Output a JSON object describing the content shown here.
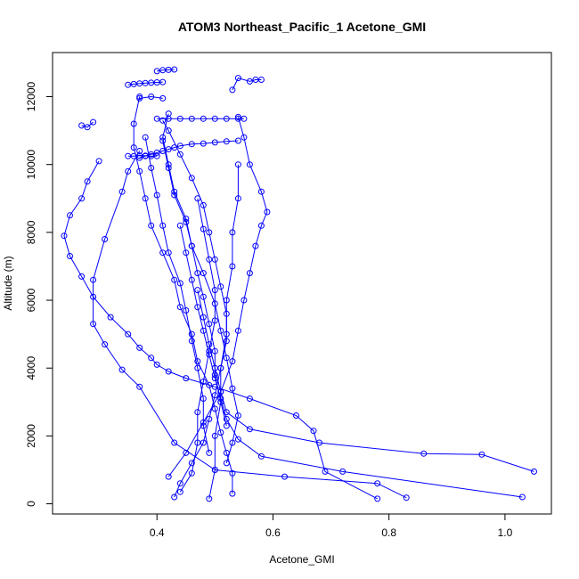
{
  "chart_data": {
    "type": "scatter",
    "title": "ATOM3 Northeast_Pacific_1 Acetone_GMI",
    "xlabel": "Acetone_GMI",
    "ylabel": "Altitude (m)",
    "xlim": [
      0.22,
      1.08
    ],
    "ylim": [
      -300,
      13300
    ],
    "x_ticks": [
      "0.4",
      "0.6",
      "0.8",
      "1.0"
    ],
    "y_ticks": [
      "0",
      "2000",
      "4000",
      "6000",
      "8000",
      "10000",
      "12000"
    ],
    "grid": false,
    "marker": "open-circle",
    "color": "#0000ff",
    "series": [
      {
        "x": [
          0.43,
          0.44,
          0.46,
          0.48,
          0.49,
          0.5,
          0.51,
          0.52,
          0.52,
          0.51,
          0.5,
          0.49,
          0.48,
          0.46,
          0.44,
          0.42,
          0.41
        ],
        "y": [
          200,
          600,
          1200,
          1800,
          2500,
          3200,
          4000,
          4800,
          5600,
          6400,
          7200,
          8000,
          8800,
          9600,
          10300,
          11000,
          11300
        ]
      },
      {
        "x": [
          0.53,
          0.53,
          0.52,
          0.51,
          0.5,
          0.49,
          0.47,
          0.46,
          0.44,
          0.43,
          0.41,
          0.39,
          0.38,
          0.37,
          0.36,
          0.36,
          0.37
        ],
        "y": [
          300,
          900,
          1500,
          2100,
          2800,
          3500,
          4200,
          5000,
          5800,
          6600,
          7400,
          8200,
          9000,
          9800,
          10500,
          11200,
          12000
        ]
      },
      {
        "x": [
          0.52,
          0.53,
          0.54,
          0.53,
          0.52,
          0.51,
          0.5,
          0.48,
          0.46,
          0.45,
          0.43,
          0.42,
          0.41,
          0.42
        ],
        "y": [
          1200,
          1800,
          2600,
          3400,
          4300,
          5100,
          5900,
          6800,
          7600,
          8400,
          9200,
          10000,
          10800,
          11500
        ]
      },
      {
        "x": [
          0.49,
          0.48,
          0.48,
          0.47,
          0.46,
          0.45,
          0.44,
          0.42,
          0.41,
          0.4,
          0.39,
          0.38
        ],
        "y": [
          1500,
          2300,
          3100,
          4000,
          4800,
          5700,
          6500,
          7400,
          8200,
          9100,
          9900,
          10800
        ]
      },
      {
        "x": [
          1.03,
          0.72,
          0.58,
          0.54,
          0.52,
          0.51,
          0.5,
          0.49,
          0.48,
          0.47,
          0.46,
          0.45,
          0.44
        ],
        "y": [
          200,
          950,
          1400,
          1900,
          2500,
          3100,
          3700,
          4400,
          5100,
          5800,
          6600,
          7400,
          8200
        ]
      },
      {
        "x": [
          1.05,
          0.96,
          0.86,
          0.68,
          0.56,
          0.52,
          0.51,
          0.5,
          0.49,
          0.48,
          0.47
        ],
        "y": [
          950,
          1450,
          1480,
          1800,
          2200,
          2700,
          3300,
          4000,
          4700,
          5500,
          6300
        ]
      },
      {
        "x": [
          0.78,
          0.69,
          0.67,
          0.64,
          0.56,
          0.5,
          0.45,
          0.42,
          0.4,
          0.39,
          0.37,
          0.35,
          0.32,
          0.29,
          0.27,
          0.25,
          0.24,
          0.25,
          0.27,
          0.28,
          0.3
        ],
        "y": [
          150,
          950,
          2150,
          2600,
          3100,
          3450,
          3700,
          3900,
          4100,
          4300,
          4600,
          5000,
          5500,
          6100,
          6700,
          7300,
          7900,
          8500,
          9000,
          9500,
          10100
        ]
      },
      {
        "x": [
          0.83,
          0.78,
          0.62,
          0.5,
          0.43,
          0.37,
          0.34,
          0.31,
          0.29,
          0.29,
          0.31,
          0.34,
          0.35,
          0.37
        ],
        "y": [
          180,
          600,
          800,
          1000,
          1800,
          3450,
          3950,
          4700,
          5300,
          6600,
          7800,
          9200,
          9800,
          10400
        ]
      },
      {
        "x": [
          0.52,
          0.51,
          0.5,
          0.5,
          0.49,
          0.48,
          0.47,
          0.46,
          0.45,
          0.43,
          0.42,
          0.41
        ],
        "y": [
          2300,
          3000,
          3800,
          4500,
          5300,
          6100,
          6800,
          7600,
          8300,
          9100,
          9900,
          10700
        ]
      },
      {
        "x": [
          0.42,
          0.45,
          0.48,
          0.51,
          0.53,
          0.54,
          0.55,
          0.56,
          0.57,
          0.58,
          0.59,
          0.58,
          0.56,
          0.55,
          0.54
        ],
        "y": [
          800,
          1500,
          2400,
          3300,
          4200,
          5100,
          6000,
          6800,
          7600,
          8200,
          8600,
          9200,
          10000,
          10800,
          11400
        ]
      },
      {
        "x": [
          0.44,
          0.46,
          0.47,
          0.47,
          0.48,
          0.49,
          0.5,
          0.5,
          0.49,
          0.48,
          0.47
        ],
        "y": [
          350,
          900,
          1800,
          2700,
          3600,
          4500,
          5400,
          6300,
          7200,
          8100,
          9000
        ]
      },
      {
        "x": [
          0.49,
          0.5,
          0.5,
          0.51,
          0.51,
          0.52,
          0.52,
          0.53,
          0.53,
          0.54,
          0.54
        ],
        "y": [
          150,
          1000,
          2000,
          3000,
          4000,
          5000,
          6000,
          7000,
          8000,
          9000,
          10000
        ]
      },
      {
        "x": [
          0.37,
          0.38,
          0.39,
          0.4,
          0.41,
          0.42,
          0.43,
          0.44,
          0.46,
          0.48,
          0.5,
          0.52,
          0.54
        ],
        "y": [
          10200,
          10250,
          10300,
          10350,
          10400,
          10450,
          10500,
          10550,
          10600,
          10620,
          10650,
          10680,
          10700
        ]
      },
      {
        "x": [
          0.35,
          0.36,
          0.37,
          0.38,
          0.39,
          0.4
        ],
        "y": [
          10250,
          10250,
          10260,
          10260,
          10250,
          10250
        ]
      },
      {
        "x": [
          0.4,
          0.42,
          0.44,
          0.46,
          0.48,
          0.5,
          0.52,
          0.54,
          0.55
        ],
        "y": [
          11350,
          11350,
          11350,
          11350,
          11350,
          11350,
          11350,
          11350,
          11350
        ]
      },
      {
        "x": [
          0.35,
          0.36,
          0.37,
          0.38,
          0.39,
          0.4,
          0.41
        ],
        "y": [
          12350,
          12370,
          12390,
          12400,
          12410,
          12420,
          12430
        ]
      },
      {
        "x": [
          0.27,
          0.28,
          0.29
        ],
        "y": [
          11150,
          11100,
          11250
        ]
      },
      {
        "x": [
          0.4,
          0.41,
          0.42,
          0.43
        ],
        "y": [
          12750,
          12780,
          12790,
          12800
        ]
      },
      {
        "x": [
          0.53,
          0.54,
          0.56,
          0.57,
          0.58
        ],
        "y": [
          12200,
          12550,
          12450,
          12500,
          12500
        ]
      },
      {
        "x": [
          0.37,
          0.39,
          0.41
        ],
        "y": [
          11950,
          12000,
          11950
        ]
      }
    ]
  }
}
